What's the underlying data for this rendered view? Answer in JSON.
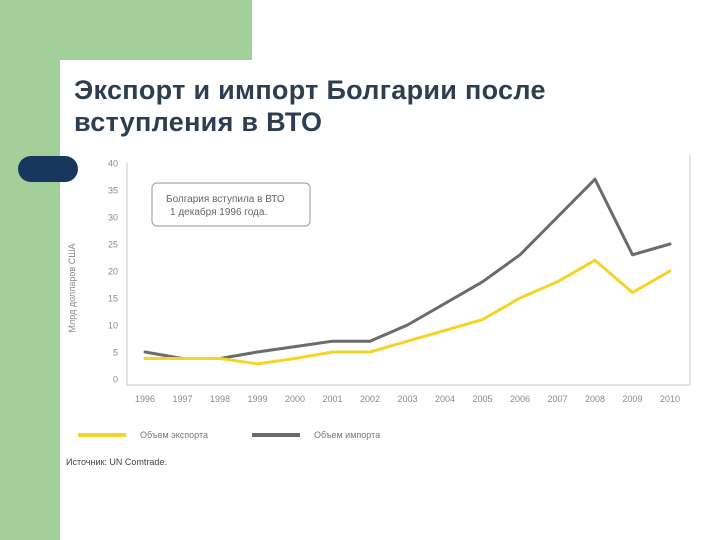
{
  "slide": {
    "title_line1": "Экспорт и импорт Болгарии после",
    "title_line2": "вступления в ВТО"
  },
  "chart_data": {
    "type": "line",
    "title": "",
    "xlabel": "",
    "ylabel": "Млрд долларов США",
    "ylim": [
      0,
      40
    ],
    "yticks": [
      0,
      5,
      10,
      15,
      20,
      25,
      30,
      35,
      40
    ],
    "grid": false,
    "x": [
      "1996",
      "1997",
      "1998",
      "1999",
      "2000",
      "2001",
      "2002",
      "2003",
      "2004",
      "2005",
      "2006",
      "2007",
      "2008",
      "2009",
      "2010"
    ],
    "series": [
      {
        "name": "Объем экспорта",
        "color": "#f5d327",
        "values": [
          3.8,
          3.8,
          3.8,
          2.8,
          3.8,
          5.0,
          5.0,
          7.0,
          9.0,
          11.0,
          15.0,
          18.0,
          22.0,
          16.0,
          20.0
        ]
      },
      {
        "name": "Объем импорта",
        "color": "#6b6b6b",
        "values": [
          5.0,
          3.8,
          3.8,
          5.0,
          6.0,
          7.0,
          7.0,
          10.0,
          14.0,
          18.0,
          23.0,
          30.0,
          37.0,
          23.0,
          25.0
        ]
      }
    ],
    "annotation": "Болгария вступила в ВТО\n1 декабря 1996 года.",
    "source": "Источник: UN Comtrade.",
    "legend_position": "bottom-left"
  }
}
